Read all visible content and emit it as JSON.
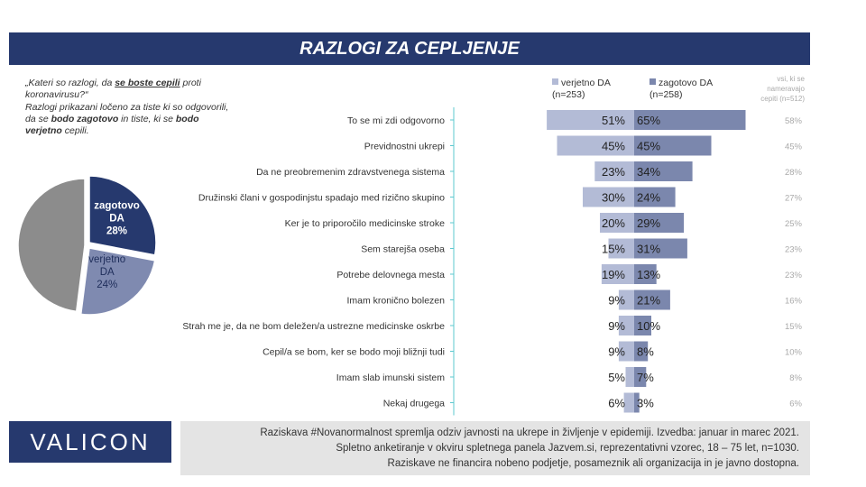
{
  "title": "RAZLOGI ZA CEPLJENJE",
  "question": {
    "pre": "„Kateri so razlogi, da ",
    "bold": "se boste cepili",
    "post": " proti koronavirusu?“",
    "note_pre": "Razlogi prikazani ločeno za tiste ki so odgovorili, da se ",
    "note_bold1": "bodo zagotovo",
    "note_mid": " in tiste, ki se ",
    "note_bold2": "bodo verjetno",
    "note_post": " cepili."
  },
  "legend": {
    "verjetno": {
      "label": "verjetno DA",
      "n": "(n=253)"
    },
    "zagotovo": {
      "label": "zagotovo DA",
      "n": "(n=258)"
    },
    "all": "vsi, ki se nameravajo cepiti (n=512)"
  },
  "colors": {
    "banner": "#26396e",
    "verjetno": "#b3bbd6",
    "zagotovo": "#7b87ad",
    "pie_zag": "#26396e",
    "pie_ver": "#7f8ab0",
    "pie_rest": "#8c8c8c",
    "guide": "#5ec8cf"
  },
  "chart_data": [
    {
      "type": "bar",
      "categories": [
        "To se mi zdi odgovorno",
        "Previdnostni ukrepi",
        "Da ne preobremenim zdravstvenega sistema",
        "Družinski člani v gospodinjstu spadajo med rizično skupino",
        "Ker je to priporočilo medicinske stroke",
        "Sem starejša oseba",
        "Potrebe delovnega mesta",
        "Imam kronično bolezen",
        "Strah me je, da ne bom deležen/a ustrezne medicinske oskrbe",
        "Cepil/a se bom, ker se bodo moji bližnji tudi",
        "Imam slab imunski sistem",
        "Nekaj drugega"
      ],
      "series": [
        {
          "name": "verjetno DA",
          "values": [
            51,
            45,
            23,
            30,
            20,
            15,
            19,
            9,
            9,
            9,
            5,
            6
          ]
        },
        {
          "name": "zagotovo DA",
          "values": [
            65,
            45,
            34,
            24,
            29,
            31,
            13,
            21,
            10,
            8,
            7,
            3
          ]
        }
      ],
      "all": [
        58,
        45,
        28,
        27,
        25,
        23,
        23,
        16,
        15,
        10,
        8,
        6
      ]
    },
    {
      "type": "pie",
      "slices": [
        {
          "label": "zagotovo DA",
          "value": 28
        },
        {
          "label": "verjetno DA",
          "value": 24
        },
        {
          "label": "",
          "value": 48
        }
      ]
    }
  ],
  "footer": [
    "Raziskava #Novanormalnost spremlja odziv javnosti na ukrepe in življenje v epidemiji. Izvedba: januar in marec 2021.",
    "Spletno anketiranje v okviru spletnega panela Jazvem.si, reprezentativni vzorec, 18 – 75 let, n=1030.",
    "Raziskave ne financira nobeno podjetje, posameznik ali organizacija in je javno dostopna."
  ],
  "logo": "VALICON"
}
